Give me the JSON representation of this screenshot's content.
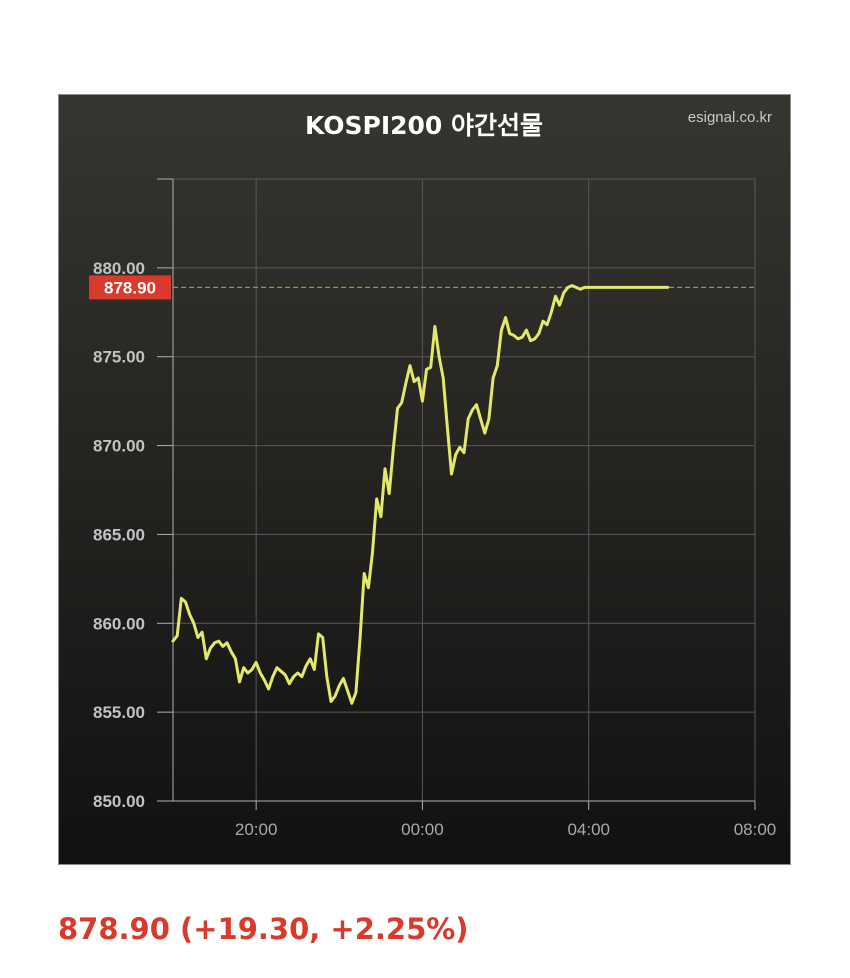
{
  "chart_data": {
    "type": "line",
    "title": "KOSPI200 야간선물",
    "source": "esignal.co.kr",
    "xlabel": "",
    "ylabel": "",
    "x_ticks": [
      "20:00",
      "00:00",
      "04:00",
      "08:00"
    ],
    "y_ticks": [
      "850.00",
      "855.00",
      "860.00",
      "865.00",
      "870.00",
      "875.00",
      "880.00"
    ],
    "ylim": [
      850,
      885
    ],
    "xlim_hours": [
      18.0,
      32.0
    ],
    "grid": true,
    "current_price": 878.9,
    "current_price_label": "878.90",
    "series": [
      {
        "color": "#e3e86a",
        "x": [
          18.0,
          18.1,
          18.2,
          18.3,
          18.4,
          18.5,
          18.6,
          18.7,
          18.8,
          18.9,
          19.0,
          19.1,
          19.2,
          19.3,
          19.4,
          19.5,
          19.6,
          19.7,
          19.8,
          19.9,
          20.0,
          20.1,
          20.2,
          20.3,
          20.4,
          20.5,
          20.6,
          20.7,
          20.8,
          20.9,
          21.0,
          21.1,
          21.2,
          21.3,
          21.4,
          21.5,
          21.6,
          21.7,
          21.8,
          21.9,
          22.0,
          22.1,
          22.2,
          22.3,
          22.4,
          22.5,
          22.6,
          22.7,
          22.8,
          22.9,
          23.0,
          23.1,
          23.2,
          23.3,
          23.4,
          23.5,
          23.6,
          23.7,
          23.8,
          23.9,
          24.0,
          24.1,
          24.2,
          24.3,
          24.4,
          24.5,
          24.6,
          24.7,
          24.8,
          24.9,
          25.0,
          25.1,
          25.2,
          25.3,
          25.4,
          25.5,
          25.6,
          25.7,
          25.8,
          25.9,
          26.0,
          26.1,
          26.2,
          26.3,
          26.4,
          26.5,
          26.6,
          26.7,
          26.8,
          26.9,
          27.0,
          27.1,
          27.2,
          27.3,
          27.4,
          27.5,
          27.6,
          27.7,
          27.8,
          27.9,
          28.0,
          28.1,
          28.2,
          28.3,
          28.4,
          28.5,
          28.6,
          28.7,
          28.8,
          28.9,
          29.0,
          29.1,
          29.2,
          29.3,
          29.4,
          29.5,
          29.6,
          29.7,
          29.8,
          29.9
        ],
        "y": [
          859.0,
          859.3,
          861.4,
          861.2,
          860.5,
          860.0,
          859.2,
          859.5,
          858.0,
          858.6,
          858.9,
          859.0,
          858.7,
          858.9,
          858.4,
          858.0,
          856.7,
          857.5,
          857.2,
          857.4,
          857.8,
          857.2,
          856.8,
          856.3,
          857.0,
          857.5,
          857.3,
          857.1,
          856.6,
          857.0,
          857.2,
          857.0,
          857.6,
          858.0,
          857.4,
          859.4,
          859.2,
          857.0,
          855.6,
          855.9,
          856.5,
          856.9,
          856.2,
          855.5,
          856.1,
          859.2,
          862.8,
          862.0,
          864.0,
          867.0,
          866.0,
          868.7,
          867.3,
          869.8,
          872.1,
          872.4,
          873.5,
          874.5,
          873.6,
          873.8,
          872.5,
          874.3,
          874.4,
          876.7,
          875.0,
          873.8,
          871.0,
          868.4,
          869.5,
          869.9,
          869.6,
          871.5,
          872.0,
          872.3,
          871.5,
          870.7,
          871.5,
          873.8,
          874.5,
          876.5,
          877.2,
          876.3,
          876.2,
          876.0,
          876.1,
          876.5,
          875.9,
          876.0,
          876.3,
          877.0,
          876.8,
          877.5,
          878.4,
          877.9,
          878.6,
          878.9,
          879.0,
          878.9,
          878.8,
          878.9,
          878.9,
          878.9,
          878.9,
          878.9,
          878.9,
          878.9,
          878.9,
          878.9,
          878.9,
          878.9,
          878.9,
          878.9,
          878.9,
          878.9,
          878.9,
          878.9,
          878.9,
          878.9,
          878.9,
          878.9
        ]
      }
    ],
    "quote": "878.90 (+19.30, +2.25%)",
    "colors": {
      "background_top": "#37352f",
      "background_bottom": "#111111",
      "line": "#e3e86a",
      "price_guide": "#55b933",
      "price_tag": "#d93a2b",
      "quote_text": "#d93a2b"
    }
  }
}
